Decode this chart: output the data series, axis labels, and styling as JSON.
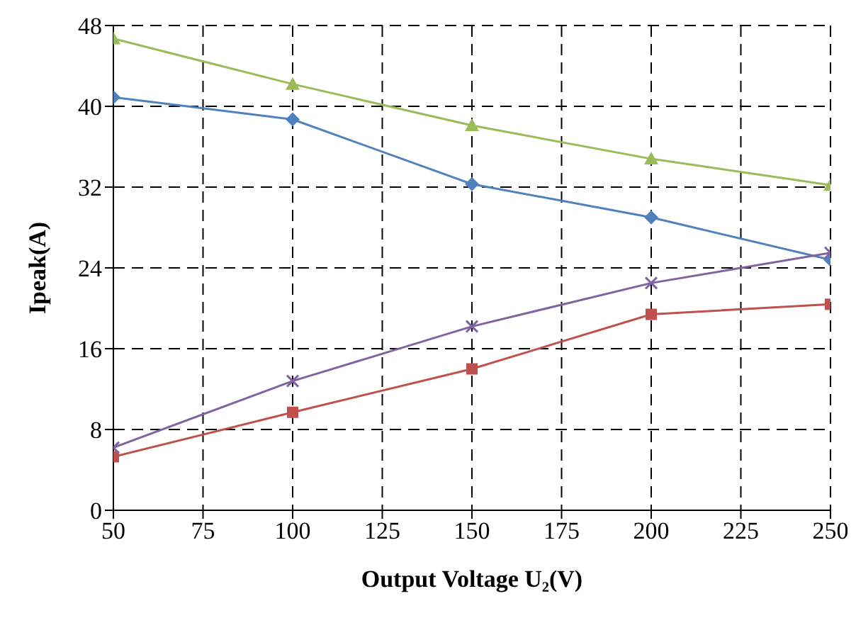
{
  "chart_data": {
    "type": "line",
    "xlabel": "Output Voltage U₂(V)",
    "ylabel": "Ipeak(A)",
    "x": [
      50,
      100,
      150,
      200,
      250
    ],
    "series": [
      {
        "color": "#4f81bd",
        "marker": "diamond",
        "values": [
          40.9,
          38.7,
          32.3,
          29.0,
          24.8
        ]
      },
      {
        "color": "#c0504d",
        "marker": "square",
        "values": [
          5.3,
          9.7,
          14.0,
          19.4,
          20.4
        ]
      },
      {
        "color": "#9bbb59",
        "marker": "triangle",
        "values": [
          46.7,
          42.2,
          38.1,
          34.8,
          32.2
        ]
      },
      {
        "color": "#8064a2",
        "marker": "cross",
        "values": [
          6.2,
          12.8,
          18.2,
          22.5,
          25.5
        ]
      }
    ],
    "xlim": [
      50,
      250
    ],
    "xticks": [
      50,
      75,
      100,
      125,
      150,
      175,
      200,
      225,
      250
    ],
    "ylim": [
      0,
      48
    ],
    "yticks": [
      0,
      8,
      16,
      24,
      32,
      40,
      48
    ],
    "grid": true,
    "legend": false,
    "line_style": "solid"
  }
}
